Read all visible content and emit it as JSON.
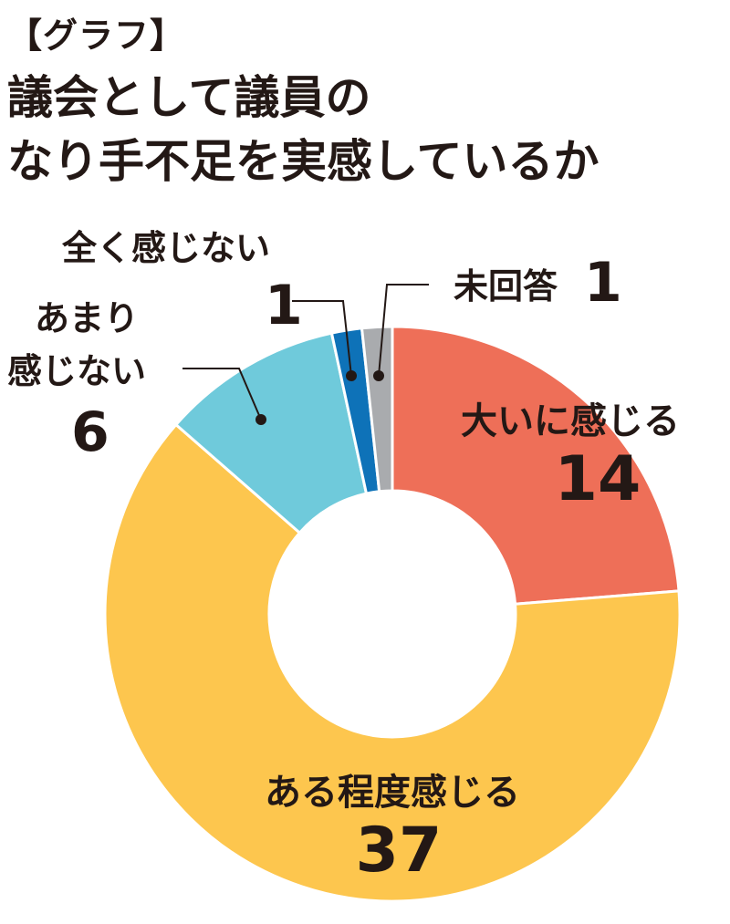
{
  "tag": "【グラフ】",
  "title": {
    "line1": "議会として議員の",
    "line2": "なり手不足を実感しているか"
  },
  "chart_data": {
    "type": "pie",
    "variant": "donut",
    "title": "議会として議員のなり手不足を実感しているか",
    "start_at": "top, clockwise",
    "categories": [
      "大いに感じる",
      "ある程度感じる",
      "あまり感じない",
      "全く感じない",
      "未回答"
    ],
    "values": [
      14,
      37,
      6,
      1,
      1
    ],
    "colors": [
      "#ee6f58",
      "#fdc64e",
      "#6fcadb",
      "#0e72b8",
      "#a9abae"
    ],
    "labels": [
      {
        "name": "大いに感じる",
        "value": "14"
      },
      {
        "name": "ある程度感じる",
        "value": "37"
      },
      {
        "name_lines": [
          "あまり",
          "感じない"
        ],
        "value": "6"
      },
      {
        "name": "全く感じない",
        "value": "1"
      },
      {
        "name": "未回答",
        "value": "1"
      }
    ]
  }
}
